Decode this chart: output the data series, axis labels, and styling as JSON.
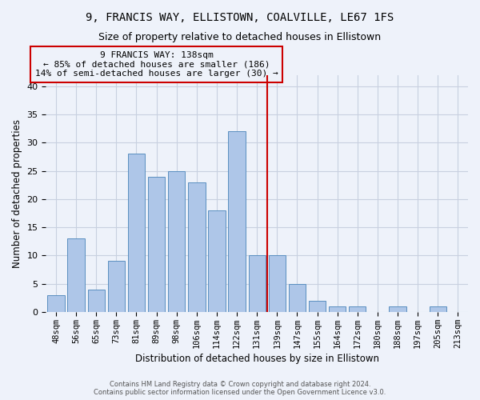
{
  "title": "9, FRANCIS WAY, ELLISTOWN, COALVILLE, LE67 1FS",
  "subtitle": "Size of property relative to detached houses in Ellistown",
  "xlabel": "Distribution of detached houses by size in Ellistown",
  "ylabel": "Number of detached properties",
  "bar_labels": [
    "48sqm",
    "56sqm",
    "65sqm",
    "73sqm",
    "81sqm",
    "89sqm",
    "98sqm",
    "106sqm",
    "114sqm",
    "122sqm",
    "131sqm",
    "139sqm",
    "147sqm",
    "155sqm",
    "164sqm",
    "172sqm",
    "180sqm",
    "188sqm",
    "197sqm",
    "205sqm",
    "213sqm"
  ],
  "bar_values": [
    3,
    13,
    4,
    9,
    28,
    24,
    25,
    23,
    18,
    32,
    10,
    10,
    5,
    2,
    1,
    1,
    0,
    1,
    0,
    1,
    0
  ],
  "bar_color": "#aec6e8",
  "bar_edge_color": "#5a8fc0",
  "property_line_x": 10.5,
  "annotation_text": "9 FRANCIS WAY: 138sqm\n← 85% of detached houses are smaller (186)\n14% of semi-detached houses are larger (30) →",
  "vline_color": "#cc0000",
  "background_color": "#eef2fa",
  "grid_color": "#c8d0e0",
  "footer_line1": "Contains HM Land Registry data © Crown copyright and database right 2024.",
  "footer_line2": "Contains public sector information licensed under the Open Government Licence v3.0.",
  "ylim": [
    0,
    42
  ],
  "title_fontsize": 10,
  "subtitle_fontsize": 9
}
